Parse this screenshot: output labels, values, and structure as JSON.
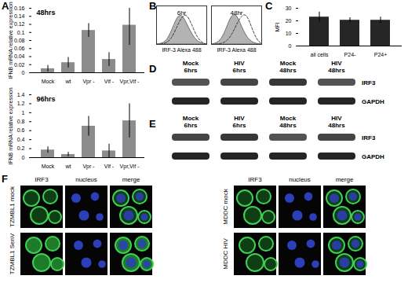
{
  "chart_data": [
    {
      "type": "bar",
      "title": "48hrs",
      "y_label": "IFNB mRNA relative expression",
      "categories": [
        "Mock",
        "wt",
        "Vpr -",
        "Vif -",
        "Vpr,Vif -"
      ],
      "values": [
        0.01,
        0.025,
        0.105,
        0.033,
        0.118
      ],
      "errors": [
        0.008,
        0.013,
        0.017,
        0.017,
        0.05
      ],
      "color": "#8c8c8c",
      "ylim": [
        0,
        0.16
      ],
      "yticks": [
        0,
        0.02,
        0.04,
        0.06,
        0.08,
        0.1,
        0.12,
        0.14,
        0.16
      ]
    },
    {
      "type": "bar",
      "title": "96hrs",
      "y_label": "IFNB mRNA relative expression",
      "categories": [
        "Mock",
        "wt",
        "Vpr -",
        "Vif -",
        "Vpr,Vif -"
      ],
      "values": [
        0.17,
        0.07,
        0.7,
        0.15,
        0.82
      ],
      "errors": [
        0.07,
        0.05,
        0.22,
        0.15,
        0.38
      ],
      "color": "#8c8c8c",
      "ylim": [
        0,
        1.4
      ],
      "yticks": [
        0,
        0.2,
        0.4,
        0.6,
        0.8,
        1,
        1.2,
        1.4
      ]
    },
    {
      "type": "line",
      "title": "6hr",
      "x_label": "IRF-3 Alexa 488",
      "tick_labels": false,
      "x": [
        0,
        1,
        2,
        3,
        4,
        5,
        6,
        7,
        8,
        9,
        10
      ],
      "xlim": [
        0,
        10
      ],
      "ylim": [
        0,
        125
      ],
      "series": [
        {
          "type": "area",
          "color": "#b3b3b3",
          "values": [
            0,
            2,
            10,
            40,
            85,
            100,
            70,
            35,
            12,
            3,
            0
          ]
        },
        {
          "type": "line",
          "line_style": "dashed",
          "color": "#333333",
          "values": [
            0,
            1,
            5,
            20,
            55,
            90,
            100,
            65,
            25,
            6,
            0
          ]
        }
      ]
    },
    {
      "type": "line",
      "title": "48hr",
      "x_label": "IRF-3 Alexa 488",
      "tick_labels": false,
      "x": [
        0,
        1,
        2,
        3,
        4,
        5,
        6,
        7,
        8,
        9,
        10
      ],
      "xlim": [
        0,
        10
      ],
      "ylim": [
        0,
        125
      ],
      "series": [
        {
          "type": "area",
          "color": "#b3b3b3",
          "values": [
            0,
            3,
            15,
            50,
            95,
            100,
            60,
            25,
            8,
            2,
            0
          ]
        },
        {
          "type": "line",
          "line_style": "dashed",
          "color": "#333333",
          "values": [
            0,
            1,
            3,
            10,
            30,
            65,
            95,
            100,
            55,
            15,
            2
          ]
        }
      ]
    },
    {
      "type": "bar",
      "y_label": "MFI",
      "categories": [
        "all cells",
        "P24-",
        "P24+"
      ],
      "values": [
        23,
        20.5,
        20.5
      ],
      "errors": [
        4,
        2,
        2.5
      ],
      "color": "#262626",
      "ylim": [
        0,
        30
      ],
      "yticks": [
        0,
        10,
        20,
        30
      ]
    }
  ],
  "panels": [
    "A",
    "B",
    "C",
    "D",
    "E",
    "F"
  ],
  "blots": [
    {
      "lanes": [
        "Mock 6hrs",
        "HIV 6hrs",
        "Mock 48hrs",
        "HIV 48hrs"
      ],
      "rows": [
        "IRF3",
        "GAPDH"
      ]
    },
    {
      "lanes": [
        "Mock 6hrs",
        "HIV 6hrs",
        "Mock 48hrs",
        "HIV 48hrs"
      ],
      "rows": [
        "IRF3",
        "GAPDH"
      ]
    }
  ],
  "images": [
    {
      "columns": [
        "IRF3",
        "nucleus",
        "merge"
      ],
      "rows": [
        "TZMBL1 mock",
        "TZMBL1 SenV"
      ]
    },
    {
      "columns": [
        "IRF3",
        "nucleus",
        "merge"
      ],
      "rows": [
        "MDDC mock",
        "MDDC HIV"
      ]
    }
  ]
}
